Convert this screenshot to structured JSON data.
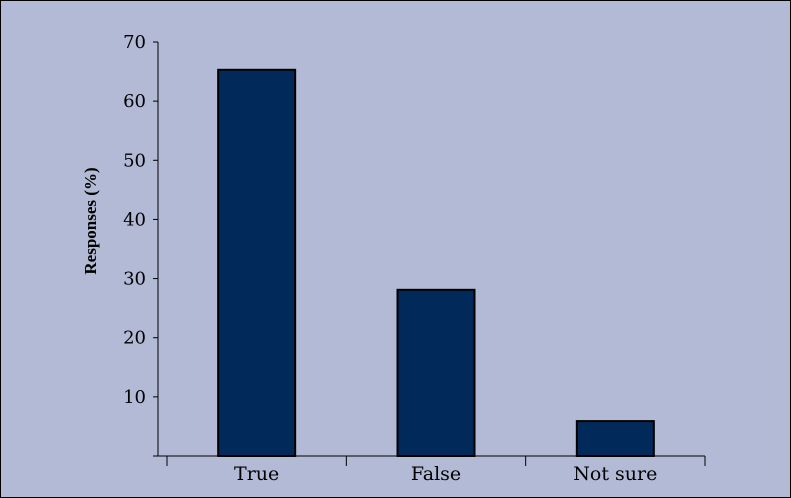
{
  "colors": {
    "background": "#b3bad6",
    "bar_fill": "#012a5a",
    "bar_stroke": "#000000",
    "axis": "#000000"
  },
  "chart_data": {
    "type": "bar",
    "categories": [
      "True",
      "False",
      "Not sure"
    ],
    "values": [
      65.3,
      28.1,
      5.9
    ],
    "ylabel": "Responses (%)",
    "ylim": [
      0,
      70
    ],
    "yticks": [
      10,
      20,
      30,
      40,
      50,
      60,
      70
    ],
    "grid": false,
    "legend": "none"
  }
}
